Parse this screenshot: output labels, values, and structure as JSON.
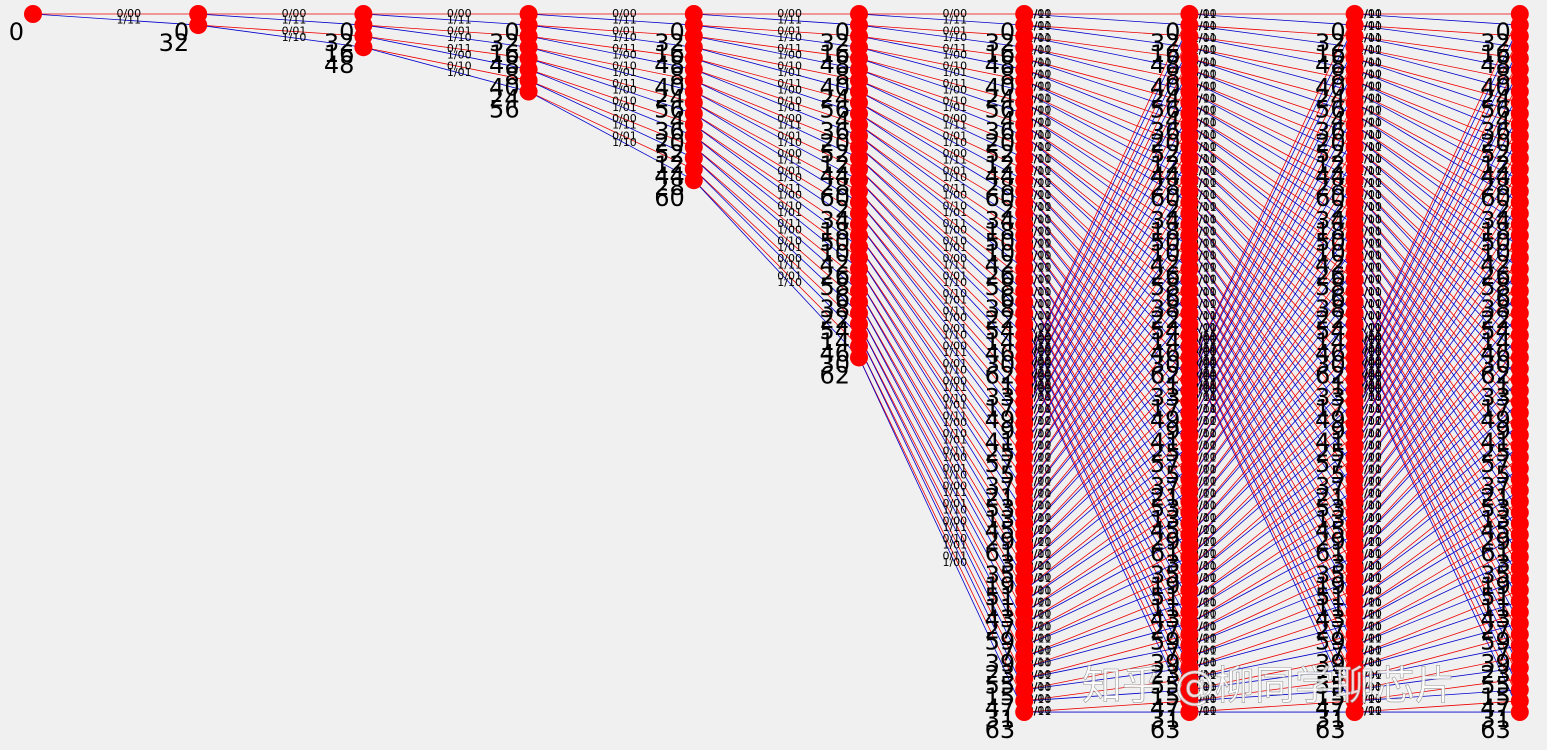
{
  "columns": [
    [
      0
    ],
    [
      0,
      32
    ],
    [
      0,
      32,
      16,
      48
    ],
    [
      0,
      32,
      16,
      48,
      8,
      40,
      24,
      56
    ],
    [
      0,
      32,
      16,
      48,
      8,
      40,
      24,
      56,
      4,
      36,
      20,
      52,
      12,
      44,
      28,
      60
    ],
    [
      0,
      32,
      16,
      48,
      8,
      40,
      24,
      56,
      4,
      36,
      20,
      52,
      12,
      44,
      28,
      60,
      2,
      34,
      18,
      50,
      10,
      42,
      26,
      58,
      6,
      38,
      22,
      54,
      14,
      46,
      30,
      62
    ],
    [
      0,
      32,
      16,
      48,
      8,
      40,
      24,
      56,
      4,
      36,
      20,
      52,
      12,
      44,
      28,
      60,
      2,
      34,
      18,
      50,
      10,
      42,
      26,
      58,
      6,
      38,
      22,
      54,
      14,
      46,
      30,
      62,
      1,
      33,
      17,
      49,
      9,
      41,
      25,
      57,
      5,
      37,
      21,
      53,
      13,
      45,
      29,
      61,
      3,
      35,
      19,
      51,
      11,
      43,
      27,
      59,
      7,
      39,
      23,
      55,
      15,
      47,
      31,
      63
    ],
    [
      0,
      32,
      16,
      48,
      8,
      40,
      24,
      56,
      4,
      36,
      20,
      52,
      12,
      44,
      28,
      60,
      2,
      34,
      18,
      50,
      10,
      42,
      26,
      58,
      6,
      38,
      22,
      54,
      14,
      46,
      30,
      62,
      1,
      33,
      17,
      49,
      9,
      41,
      25,
      57,
      5,
      37,
      21,
      53,
      13,
      45,
      29,
      61,
      3,
      35,
      19,
      51,
      11,
      43,
      27,
      59,
      7,
      39,
      23,
      55,
      15,
      47,
      31,
      63
    ],
    [
      0,
      32,
      16,
      48,
      8,
      40,
      24,
      56,
      4,
      36,
      20,
      52,
      12,
      44,
      28,
      60,
      2,
      34,
      18,
      50,
      10,
      42,
      26,
      58,
      6,
      38,
      22,
      54,
      14,
      46,
      30,
      62,
      1,
      33,
      17,
      49,
      9,
      41,
      25,
      57,
      5,
      37,
      21,
      53,
      13,
      45,
      29,
      61,
      3,
      35,
      19,
      51,
      11,
      43,
      27,
      59,
      7,
      39,
      23,
      55,
      15,
      47,
      31,
      63
    ],
    [
      0,
      32,
      16,
      48,
      8,
      40,
      24,
      56,
      4,
      36,
      20,
      52,
      12,
      44,
      28,
      60,
      2,
      34,
      18,
      50,
      10,
      42,
      26,
      58,
      6,
      38,
      22,
      54,
      14,
      46,
      30,
      62,
      1,
      33,
      17,
      49,
      9,
      41,
      25,
      57,
      5,
      37,
      21,
      53,
      13,
      45,
      29,
      61,
      3,
      35,
      19,
      51,
      11,
      43,
      27,
      59,
      7,
      39,
      23,
      55,
      15,
      47,
      31,
      63
    ]
  ],
  "transitions": {
    "0": [
      "0/00",
      "1/11"
    ],
    "1": [
      "0/11",
      "1/00"
    ],
    "2": [
      "0/10",
      "1/01"
    ],
    "3": [
      "0/01",
      "1/10"
    ],
    "4": [
      "0/00",
      "1/11"
    ],
    "5": [
      "0/11",
      "1/00"
    ],
    "6": [
      "0/10",
      "1/01"
    ],
    "7": [
      "0/01",
      "1/10"
    ],
    "8": [
      "0/11",
      "1/00"
    ],
    "9": [
      "0/00",
      "1/11"
    ],
    "10": [
      "0/01",
      "1/10"
    ],
    "11": [
      "0/10",
      "1/01"
    ],
    "12": [
      "0/11",
      "1/00"
    ],
    "13": [
      "0/00",
      "1/11"
    ],
    "14": [
      "0/01",
      "1/10"
    ],
    "15": [
      "0/10",
      "1/01"
    ],
    "16": [
      "0/11",
      "1/00"
    ],
    "17": [
      "0/00",
      "1/11"
    ],
    "18": [
      "0/01",
      "1/10"
    ],
    "19": [
      "0/10",
      "1/01"
    ],
    "20": [
      "0/11",
      "1/00"
    ],
    "21": [
      "0/00",
      "1/11"
    ],
    "22": [
      "0/01",
      "1/10"
    ],
    "23": [
      "0/10",
      "1/01"
    ],
    "24": [
      "0/00",
      "1/11"
    ],
    "25": [
      "0/11",
      "1/00"
    ],
    "26": [
      "0/10",
      "1/01"
    ],
    "27": [
      "0/01",
      "1/10"
    ],
    "28": [
      "0/00",
      "1/11"
    ],
    "29": [
      "0/11",
      "1/00"
    ],
    "30": [
      "0/10",
      "1/01"
    ],
    "31": [
      "0/01",
      "1/10"
    ],
    "32": [
      "0/01",
      "1/10"
    ],
    "33": [
      "0/10",
      "1/01"
    ],
    "34": [
      "0/11",
      "1/00"
    ],
    "35": [
      "0/00",
      "1/11"
    ],
    "36": [
      "0/01",
      "1/10"
    ],
    "37": [
      "0/10",
      "1/01"
    ],
    "38": [
      "0/11",
      "1/00"
    ],
    "39": [
      "0/00",
      "1/11"
    ],
    "40": [
      "0/10",
      "1/01"
    ],
    "41": [
      "0/01",
      "1/10"
    ],
    "42": [
      "0/00",
      "1/11"
    ],
    "43": [
      "0/11",
      "1/00"
    ],
    "44": [
      "0/10",
      "1/01"
    ],
    "45": [
      "0/01",
      "1/10"
    ],
    "46": [
      "0/00",
      "1/11"
    ],
    "47": [
      "0/11",
      "1/00"
    ],
    "48": [
      "0/10",
      "1/01"
    ],
    "49": [
      "0/01",
      "1/10"
    ],
    "50": [
      "0/00",
      "1/11"
    ],
    "51": [
      "0/11",
      "1/00"
    ],
    "52": [
      "0/10",
      "1/01"
    ],
    "53": [
      "0/01",
      "1/10"
    ],
    "54": [
      "0/00",
      "1/11"
    ],
    "55": [
      "0/11",
      "1/00"
    ],
    "56": [
      "0/01",
      "1/10"
    ],
    "57": [
      "0/10",
      "1/01"
    ],
    "58": [
      "0/11",
      "1/00"
    ],
    "59": [
      "0/00",
      "1/11"
    ],
    "60": [
      "0/01",
      "1/10"
    ],
    "61": [
      "0/10",
      "1/01"
    ],
    "62": [
      "0/11",
      "1/00"
    ],
    "63": [
      "0/00",
      "1/11"
    ]
  },
  "watermark": "知乎 @柳同学聊芯片"
}
